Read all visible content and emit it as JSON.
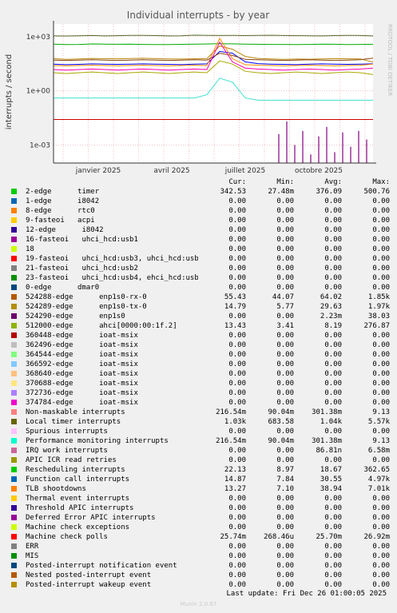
{
  "chart_data": {
    "type": "line",
    "title": "Individual interrupts - by year",
    "ylabel": "interrupts / second",
    "yscale": "log",
    "ylim": [
      0.0001,
      5000
    ],
    "yticks": [
      "1e-03",
      "1e+00",
      "1e+03"
    ],
    "xticks": [
      "janvier 2025",
      "avril 2025",
      "juillet 2025",
      "octobre 2025"
    ],
    "grid": true,
    "watermark": "RRDTOOL / TOBI OETIKER",
    "series": [
      {
        "name": "Local timer interrupts",
        "color": "#556b2f",
        "values": [
          1100,
          1080,
          1120,
          1150,
          1100,
          1130,
          1160,
          1180,
          1140,
          1100,
          1120,
          1200,
          1180,
          1150,
          1160,
          1140,
          1170,
          1190,
          1150,
          1130,
          1120,
          1100,
          1140,
          1160,
          1150,
          1100
        ]
      },
      {
        "name": "2-edge timer",
        "color": "#00aa00",
        "values": [
          380,
          360,
          370,
          390,
          385,
          375,
          380,
          370,
          365,
          360,
          372,
          380,
          390,
          400,
          395,
          380,
          375,
          370,
          368,
          365,
          370,
          380,
          375,
          360,
          370,
          376
        ]
      },
      {
        "name": "TLB shootdowns",
        "color": "#b8860b",
        "values": [
          60,
          55,
          58,
          62,
          60,
          59,
          61,
          63,
          60,
          58,
          57,
          59,
          60,
          300,
          200,
          80,
          62,
          58,
          55,
          57,
          56,
          58,
          60,
          59,
          58,
          39
        ]
      },
      {
        "name": "Function call interrupts",
        "color": "#0000ff",
        "values": [
          30,
          28,
          29,
          31,
          30,
          29,
          30,
          31,
          30,
          29,
          28,
          30,
          31,
          150,
          120,
          40,
          32,
          30,
          29,
          28,
          30,
          31,
          30,
          29,
          30,
          31
        ]
      },
      {
        "name": "512000-edge",
        "color": "#aaaa00",
        "values": [
          10,
          9,
          10,
          11,
          10,
          9,
          10,
          11,
          10,
          9,
          10,
          11,
          10,
          45,
          30,
          12,
          10,
          9,
          10,
          11,
          10,
          9,
          10,
          11,
          10,
          8
        ]
      },
      {
        "name": "524289-edge",
        "color": "#ff8c00",
        "values": [
          25,
          24,
          25,
          26,
          25,
          24,
          25,
          26,
          25,
          24,
          25,
          26,
          25,
          800,
          60,
          28,
          26,
          25,
          24,
          25,
          26,
          25,
          24,
          25,
          26,
          30
        ]
      },
      {
        "name": "524288-edge",
        "color": "#8b4513",
        "values": [
          50,
          48,
          50,
          52,
          50,
          48,
          50,
          52,
          50,
          48,
          50,
          52,
          50,
          120,
          90,
          55,
          52,
          50,
          48,
          50,
          52,
          50,
          48,
          50,
          52,
          64
        ]
      },
      {
        "name": "Rescheduling interrupts",
        "color": "#ff00aa",
        "values": [
          15,
          14,
          15,
          16,
          15,
          14,
          15,
          16,
          15,
          14,
          15,
          16,
          15,
          500,
          40,
          18,
          16,
          15,
          14,
          15,
          16,
          15,
          14,
          15,
          16,
          18
        ]
      },
      {
        "name": "Non-maskable interrupts",
        "color": "#40e0d0",
        "values": [
          0.4,
          0.4,
          0.4,
          0.4,
          0.4,
          0.4,
          0.4,
          0.4,
          0.4,
          0.4,
          0.4,
          0.4,
          0.6,
          5,
          3,
          0.4,
          0.3,
          0.3,
          0.3,
          0.3,
          0.3,
          0.3,
          0.3,
          0.3,
          0.3,
          0.3
        ]
      },
      {
        "name": "Machine check polls",
        "color": "#cc0000",
        "values": [
          0.0257,
          0.0257,
          0.0257,
          0.0257,
          0.0257,
          0.0257,
          0.0257,
          0.0257,
          0.0257,
          0.0257,
          0.0257,
          0.0257,
          0.0257,
          0.0257,
          0.0257,
          0.0257,
          0.0257,
          0.0257,
          0.0257,
          0.0257,
          0.0257,
          0.0257,
          0.0257,
          0.0257,
          0.0257,
          0.0257
        ]
      },
      {
        "name": "IRQ work interrupts",
        "color": "#800080",
        "values": [
          0,
          0,
          0,
          0,
          0,
          0,
          0,
          0,
          0,
          0,
          0,
          0,
          0,
          0,
          0.004,
          0.02,
          0.001,
          0.006,
          0.0003,
          0.003,
          0.01,
          0.0004,
          0.005,
          0.0008,
          0.006,
          0.002
        ]
      }
    ]
  },
  "legend": {
    "headers": [
      "Cur:",
      "Min:",
      "Avg:",
      "Max:"
    ],
    "rows": [
      {
        "name": "2-edge      timer",
        "color": "#00cc00",
        "cur": "342.53",
        "min": "27.48m",
        "avg": "376.09",
        "max": "500.76"
      },
      {
        "name": "1-edge      i8042",
        "color": "#0066b3",
        "cur": "0.00",
        "min": "0.00",
        "avg": "0.00",
        "max": "0.00"
      },
      {
        "name": "8-edge      rtc0",
        "color": "#ff8000",
        "cur": "0.00",
        "min": "0.00",
        "avg": "0.00",
        "max": "0.00"
      },
      {
        "name": "9-fasteoi   acpi",
        "color": "#ffcc00",
        "cur": "0.00",
        "min": "0.00",
        "avg": "0.00",
        "max": "0.00"
      },
      {
        "name": "12-edge      i8042",
        "color": "#330099",
        "cur": "0.00",
        "min": "0.00",
        "avg": "0.00",
        "max": "0.00"
      },
      {
        "name": "16-fasteoi   uhci_hcd:usb1",
        "color": "#990099",
        "cur": "0.00",
        "min": "0.00",
        "avg": "0.00",
        "max": "0.00"
      },
      {
        "name": "18",
        "color": "#ccff00",
        "cur": "0.00",
        "min": "0.00",
        "avg": "0.00",
        "max": "0.00"
      },
      {
        "name": "19-fasteoi   uhci_hcd:usb3, uhci_hcd:usb6",
        "color": "#ff0000",
        "cur": "0.00",
        "min": "0.00",
        "avg": "0.00",
        "max": "0.00"
      },
      {
        "name": "21-fasteoi   uhci_hcd:usb2",
        "color": "#808080",
        "cur": "0.00",
        "min": "0.00",
        "avg": "0.00",
        "max": "0.00"
      },
      {
        "name": "23-fasteoi   uhci_hcd:usb4, ehci_hcd:usb7",
        "color": "#008f00",
        "cur": "0.00",
        "min": "0.00",
        "avg": "0.00",
        "max": "0.00"
      },
      {
        "name": "0-edge      dmar0",
        "color": "#00487d",
        "cur": "0.00",
        "min": "0.00",
        "avg": "0.00",
        "max": "0.00"
      },
      {
        "name": "524288-edge      enp1s0-rx-0",
        "color": "#b35a00",
        "cur": "55.43",
        "min": "44.07",
        "avg": "64.02",
        "max": "1.85k"
      },
      {
        "name": "524289-edge      enp1s0-tx-0",
        "color": "#b38f00",
        "cur": "14.79",
        "min": "5.77",
        "avg": "29.63",
        "max": "1.97k"
      },
      {
        "name": "524290-edge      enp1s0",
        "color": "#6b006b",
        "cur": "0.00",
        "min": "0.00",
        "avg": "2.23m",
        "max": "38.03"
      },
      {
        "name": "512000-edge      ahci[0000:00:1f.2]",
        "color": "#8fb300",
        "cur": "13.43",
        "min": "3.41",
        "avg": "8.19",
        "max": "276.87"
      },
      {
        "name": "360448-edge      ioat-msix",
        "color": "#b30000",
        "cur": "0.00",
        "min": "0.00",
        "avg": "0.00",
        "max": "0.00"
      },
      {
        "name": "362496-edge      ioat-msix",
        "color": "#bebebe",
        "cur": "0.00",
        "min": "0.00",
        "avg": "0.00",
        "max": "0.00"
      },
      {
        "name": "364544-edge      ioat-msix",
        "color": "#80ff80",
        "cur": "0.00",
        "min": "0.00",
        "avg": "0.00",
        "max": "0.00"
      },
      {
        "name": "366592-edge      ioat-msix",
        "color": "#80c9ff",
        "cur": "0.00",
        "min": "0.00",
        "avg": "0.00",
        "max": "0.00"
      },
      {
        "name": "368640-edge      ioat-msix",
        "color": "#ffc080",
        "cur": "0.00",
        "min": "0.00",
        "avg": "0.00",
        "max": "0.00"
      },
      {
        "name": "370688-edge      ioat-msix",
        "color": "#ffe680",
        "cur": "0.00",
        "min": "0.00",
        "avg": "0.00",
        "max": "0.00"
      },
      {
        "name": "372736-edge      ioat-msix",
        "color": "#aa80ff",
        "cur": "0.00",
        "min": "0.00",
        "avg": "0.00",
        "max": "0.00"
      },
      {
        "name": "374784-edge      ioat-msix",
        "color": "#ee00cc",
        "cur": "0.00",
        "min": "0.00",
        "avg": "0.00",
        "max": "0.00"
      },
      {
        "name": "Non-maskable interrupts",
        "color": "#ff8080",
        "cur": "216.54m",
        "min": "90.04m",
        "avg": "301.38m",
        "max": "9.13"
      },
      {
        "name": "Local timer interrupts",
        "color": "#666600",
        "cur": "1.03k",
        "min": "683.58",
        "avg": "1.04k",
        "max": "5.57k"
      },
      {
        "name": "Spurious interrupts",
        "color": "#ffbfff",
        "cur": "0.00",
        "min": "0.00",
        "avg": "0.00",
        "max": "0.00"
      },
      {
        "name": "Performance monitoring interrupts",
        "color": "#00ffcc",
        "cur": "216.54m",
        "min": "90.04m",
        "avg": "301.38m",
        "max": "9.13"
      },
      {
        "name": "IRQ work interrupts",
        "color": "#cc6699",
        "cur": "0.00",
        "min": "0.00",
        "avg": "86.81n",
        "max": "6.58m"
      },
      {
        "name": "APIC ICR read retries",
        "color": "#999900",
        "cur": "0.00",
        "min": "0.00",
        "avg": "0.00",
        "max": "0.00"
      },
      {
        "name": "Rescheduling interrupts",
        "color": "#00cc00",
        "cur": "22.13",
        "min": "8.97",
        "avg": "18.67",
        "max": "362.65"
      },
      {
        "name": "Function call interrupts",
        "color": "#0066b3",
        "cur": "14.87",
        "min": "7.84",
        "avg": "30.55",
        "max": "4.97k"
      },
      {
        "name": "TLB shootdowns",
        "color": "#ff8000",
        "cur": "13.27",
        "min": "7.10",
        "avg": "38.94",
        "max": "7.01k"
      },
      {
        "name": "Thermal event interrupts",
        "color": "#ffcc00",
        "cur": "0.00",
        "min": "0.00",
        "avg": "0.00",
        "max": "0.00"
      },
      {
        "name": "Threshold APIC interrupts",
        "color": "#330099",
        "cur": "0.00",
        "min": "0.00",
        "avg": "0.00",
        "max": "0.00"
      },
      {
        "name": "Deferred Error APIC interrupts",
        "color": "#990099",
        "cur": "0.00",
        "min": "0.00",
        "avg": "0.00",
        "max": "0.00"
      },
      {
        "name": "Machine check exceptions",
        "color": "#ccff00",
        "cur": "0.00",
        "min": "0.00",
        "avg": "0.00",
        "max": "0.00"
      },
      {
        "name": "Machine check polls",
        "color": "#ff0000",
        "cur": "25.74m",
        "min": "268.46u",
        "avg": "25.70m",
        "max": "26.92m"
      },
      {
        "name": "ERR",
        "color": "#808080",
        "cur": "0.00",
        "min": "0.00",
        "avg": "0.00",
        "max": "0.00"
      },
      {
        "name": "MIS",
        "color": "#008f00",
        "cur": "0.00",
        "min": "0.00",
        "avg": "0.00",
        "max": "0.00"
      },
      {
        "name": "Posted-interrupt notification event",
        "color": "#00487d",
        "cur": "0.00",
        "min": "0.00",
        "avg": "0.00",
        "max": "0.00"
      },
      {
        "name": "Nested posted-interrupt event",
        "color": "#b35a00",
        "cur": "0.00",
        "min": "0.00",
        "avg": "0.00",
        "max": "0.00"
      },
      {
        "name": "Posted-interrupt wakeup event",
        "color": "#b38f00",
        "cur": "0.00",
        "min": "0.00",
        "avg": "0.00",
        "max": "0.00"
      }
    ]
  },
  "footer": {
    "last_update": "Last update: Fri Dec 26 01:00:05 2025",
    "generator": "Munin 2.0.67"
  }
}
